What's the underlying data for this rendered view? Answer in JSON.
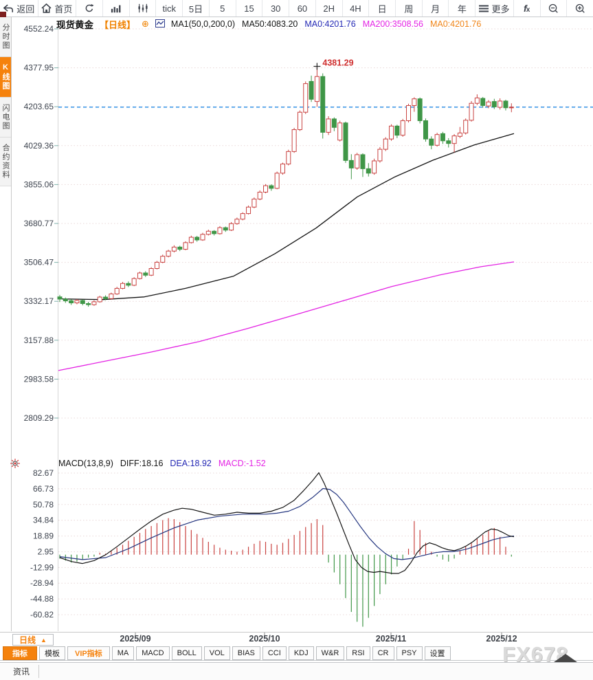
{
  "top_toolbar": {
    "items": [
      {
        "name": "back",
        "icon": "back",
        "label": "返回",
        "wide": true
      },
      {
        "name": "home",
        "icon": "home",
        "label": "首页",
        "wide": true
      },
      {
        "name": "refresh",
        "icon": "refresh",
        "label": ""
      },
      {
        "name": "bar-chart",
        "icon": "bars",
        "label": ""
      },
      {
        "name": "candle-chart",
        "icon": "candles",
        "label": ""
      },
      {
        "name": "tick",
        "label": "tick"
      },
      {
        "name": "5d",
        "label": "5日"
      },
      {
        "name": "5m",
        "label": "5"
      },
      {
        "name": "15m",
        "label": "15"
      },
      {
        "name": "30m",
        "label": "30"
      },
      {
        "name": "60m",
        "label": "60"
      },
      {
        "name": "2h",
        "label": "2H"
      },
      {
        "name": "4h",
        "label": "4H"
      },
      {
        "name": "daily",
        "label": "日"
      },
      {
        "name": "weekly",
        "label": "周"
      },
      {
        "name": "monthly",
        "label": "月"
      },
      {
        "name": "yearly",
        "label": "年"
      },
      {
        "name": "more",
        "icon": "menu",
        "label": "更多",
        "wide": true
      },
      {
        "name": "fx",
        "icon": "fx",
        "label": ""
      },
      {
        "name": "zoom-out",
        "icon": "zoomout",
        "label": ""
      },
      {
        "name": "zoom-in",
        "icon": "zoomin",
        "label": ""
      }
    ]
  },
  "sidebar": {
    "tabs": [
      {
        "name": "time-chart",
        "label": "分时图",
        "active": false
      },
      {
        "name": "kline-chart",
        "label": "K线图",
        "active": true
      },
      {
        "name": "lightning-chart",
        "label": "闪电图",
        "active": false
      },
      {
        "name": "contract-info",
        "label": "合约资料",
        "active": false
      }
    ]
  },
  "legend": {
    "symbol": "现货黄金",
    "period": "【日线】",
    "plus_icon": "⊕",
    "items": [
      {
        "name": "ma-group",
        "text": "MA1(50,0,200,0)",
        "color": "#141414"
      },
      {
        "name": "ma50",
        "text": "MA50:4083.20",
        "color": "#141414"
      },
      {
        "name": "price-line",
        "text": "MA0:4201.76",
        "color": "#2428b4"
      },
      {
        "name": "ma200",
        "text": "MA200:3508.56",
        "color": "#e424e4"
      },
      {
        "name": "last-price",
        "text": "MA0:4201.76",
        "color": "#f08418"
      }
    ]
  },
  "macd_header": {
    "items": [
      {
        "name": "macd-params",
        "text": "MACD(13,8,9)",
        "color": "#141414"
      },
      {
        "name": "diff",
        "text": "DIFF:18.16",
        "color": "#141414"
      },
      {
        "name": "dea",
        "text": "DEA:18.92",
        "color": "#2428b4"
      },
      {
        "name": "macd-hist",
        "text": "MACD:-1.52",
        "color": "#e424e4"
      }
    ]
  },
  "period_button": {
    "label": "日线",
    "arrow": "▲"
  },
  "bottom_toolbar": {
    "items": [
      {
        "name": "indicators",
        "label": "指标",
        "style": "active"
      },
      {
        "name": "templates",
        "label": "模板",
        "style": ""
      },
      {
        "name": "vip-indicators",
        "label": "VIP指标",
        "style": "vip"
      },
      {
        "name": "ma",
        "label": "MA",
        "style": ""
      },
      {
        "name": "macd",
        "label": "MACD",
        "style": ""
      },
      {
        "name": "boll",
        "label": "BOLL",
        "style": ""
      },
      {
        "name": "vol",
        "label": "VOL",
        "style": ""
      },
      {
        "name": "bias",
        "label": "BIAS",
        "style": ""
      },
      {
        "name": "cci",
        "label": "CCI",
        "style": ""
      },
      {
        "name": "kdj",
        "label": "KDJ",
        "style": ""
      },
      {
        "name": "wr",
        "label": "W&R",
        "style": ""
      },
      {
        "name": "rsi",
        "label": "RSI",
        "style": ""
      },
      {
        "name": "cr",
        "label": "CR",
        "style": ""
      },
      {
        "name": "psy",
        "label": "PSY",
        "style": ""
      },
      {
        "name": "settings",
        "label": "设置",
        "style": ""
      }
    ]
  },
  "watermark": "FX678",
  "news_tab": "资讯",
  "annotation": {
    "text": "4381.29"
  },
  "chart_data": {
    "type": "candlestick",
    "title": "现货黄金 日线",
    "price_axis_labels": [
      4552.24,
      4377.95,
      4203.65,
      4029.36,
      3855.06,
      3680.77,
      3506.47,
      3332.17,
      3157.88,
      2983.58,
      2809.29
    ],
    "macd_axis_labels": [
      82.67,
      66.73,
      50.78,
      34.84,
      18.89,
      2.95,
      -12.99,
      -28.94,
      -44.88,
      -60.82
    ],
    "x_labels": [
      "2025/09",
      "2025/10",
      "2025/11",
      "2025/12"
    ],
    "last_price": 4201.76,
    "high_annotation": 4381.29,
    "ma50_last": 4083.2,
    "ma200_last": 3508.56,
    "macd_params": "13,8,9",
    "diff_last": 18.16,
    "dea_last": 18.92,
    "hist_last": -1.52,
    "candles": [
      [
        3352,
        3361,
        3329,
        3342
      ],
      [
        3342,
        3349,
        3325,
        3334
      ],
      [
        3335,
        3341,
        3316,
        3325
      ],
      [
        3325,
        3342,
        3319,
        3336
      ],
      [
        3336,
        3340,
        3314,
        3322
      ],
      [
        3322,
        3330,
        3308,
        3317
      ],
      [
        3317,
        3337,
        3312,
        3330
      ],
      [
        3330,
        3357,
        3326,
        3351
      ],
      [
        3351,
        3359,
        3337,
        3344
      ],
      [
        3344,
        3371,
        3340,
        3365
      ],
      [
        3365,
        3397,
        3361,
        3390
      ],
      [
        3390,
        3419,
        3386,
        3412
      ],
      [
        3412,
        3421,
        3396,
        3404
      ],
      [
        3404,
        3440,
        3400,
        3434
      ],
      [
        3434,
        3465,
        3430,
        3459
      ],
      [
        3459,
        3467,
        3441,
        3449
      ],
      [
        3449,
        3485,
        3445,
        3479
      ],
      [
        3479,
        3513,
        3475,
        3507
      ],
      [
        3507,
        3541,
        3503,
        3534
      ],
      [
        3534,
        3563,
        3529,
        3557
      ],
      [
        3557,
        3583,
        3551,
        3575
      ],
      [
        3575,
        3581,
        3557,
        3565
      ],
      [
        3565,
        3601,
        3561,
        3595
      ],
      [
        3595,
        3626,
        3591,
        3619
      ],
      [
        3619,
        3625,
        3599,
        3607
      ],
      [
        3607,
        3639,
        3603,
        3632
      ],
      [
        3632,
        3653,
        3627,
        3646
      ],
      [
        3646,
        3651,
        3627,
        3635
      ],
      [
        3635,
        3669,
        3631,
        3662
      ],
      [
        3662,
        3667,
        3643,
        3651
      ],
      [
        3651,
        3687,
        3647,
        3680
      ],
      [
        3680,
        3707,
        3675,
        3700
      ],
      [
        3700,
        3731,
        3695,
        3725
      ],
      [
        3725,
        3761,
        3721,
        3754
      ],
      [
        3754,
        3797,
        3749,
        3790
      ],
      [
        3790,
        3829,
        3785,
        3821
      ],
      [
        3821,
        3857,
        3816,
        3850
      ],
      [
        3850,
        3856,
        3827,
        3838
      ],
      [
        3838,
        3913,
        3834,
        3906
      ],
      [
        3906,
        3953,
        3899,
        3947
      ],
      [
        3947,
        4011,
        3941,
        4003
      ],
      [
        4003,
        4109,
        3997,
        4101
      ],
      [
        4101,
        4187,
        4095,
        4179
      ],
      [
        4179,
        4317,
        4171,
        4307
      ],
      [
        4317,
        4343,
        4225,
        4237
      ],
      [
        4227,
        4381.29,
        4203,
        4339
      ],
      [
        4339,
        4353,
        4061,
        4089
      ],
      [
        4089,
        4161,
        4077,
        4149
      ],
      [
        4149,
        4156,
        4094,
        4111
      ],
      [
        4054,
        4141,
        4048,
        4131
      ],
      [
        4131,
        4137,
        3952,
        3963
      ],
      [
        3963,
        3991,
        3879,
        3929
      ],
      [
        3929,
        3997,
        3921,
        3989
      ],
      [
        3989,
        3995,
        3889,
        3926
      ],
      [
        3926,
        3951,
        3891,
        3906
      ],
      [
        3906,
        3971,
        3899,
        3961
      ],
      [
        3961,
        4023,
        3953,
        4013
      ],
      [
        4013,
        4067,
        4005,
        4059
      ],
      [
        4059,
        4125,
        4051,
        4117
      ],
      [
        4117,
        4123,
        4063,
        4076
      ],
      [
        4076,
        4149,
        4069,
        4141
      ],
      [
        4141,
        4217,
        4133,
        4209
      ],
      [
        4209,
        4246,
        4181,
        4239
      ],
      [
        4239,
        4245,
        4129,
        4141
      ],
      [
        4141,
        4151,
        4047,
        4059
      ],
      [
        4059,
        4071,
        4013,
        4031
      ],
      [
        4031,
        4087,
        4025,
        4079
      ],
      [
        4083,
        4091,
        4037,
        4051
      ],
      [
        4051,
        4063,
        4021,
        4039
      ],
      [
        4039,
        4081,
        3999,
        4073
      ],
      [
        4071,
        4113,
        4063,
        4086
      ],
      [
        4086,
        4151,
        4079,
        4143
      ],
      [
        4143,
        4229,
        4137,
        4219
      ],
      [
        4219,
        4259,
        4211,
        4243
      ],
      [
        4241,
        4247,
        4199,
        4209
      ],
      [
        4207,
        4233,
        4197,
        4225
      ],
      [
        4227,
        4239,
        4193,
        4203
      ],
      [
        4201,
        4241,
        4191,
        4229
      ],
      [
        4229,
        4235,
        4187,
        4199
      ],
      [
        4199,
        4219,
        4179,
        4201.76
      ]
    ],
    "macd_hist": [
      -4,
      -6,
      -8,
      -7,
      -5,
      -3,
      -2,
      2,
      1,
      4,
      7,
      10,
      14,
      18,
      22,
      26,
      29,
      32,
      35,
      37,
      36,
      33,
      29,
      25,
      21,
      17,
      13,
      10,
      7,
      5,
      4,
      3,
      5,
      8,
      11,
      14,
      13,
      11,
      10,
      12,
      16,
      20,
      24,
      28,
      32,
      36,
      30,
      -8,
      -18,
      -30,
      -44,
      -58,
      -68,
      -73,
      -64,
      -52,
      -40,
      -30,
      -20,
      -12,
      -5,
      6,
      34,
      25,
      12,
      3,
      -2,
      -5,
      -7,
      -4,
      4,
      8,
      12,
      16,
      20,
      24,
      27,
      18,
      8,
      -2
    ],
    "diff_anchors": [
      [
        87,
        -3
      ],
      [
        104,
        -7
      ],
      [
        120,
        -9
      ],
      [
        137,
        -6
      ],
      [
        154,
        0
      ],
      [
        170,
        8
      ],
      [
        187,
        17
      ],
      [
        204,
        26
      ],
      [
        220,
        34
      ],
      [
        237,
        41
      ],
      [
        253,
        45
      ],
      [
        265,
        47
      ],
      [
        278,
        46
      ],
      [
        295,
        43
      ],
      [
        312,
        40
      ],
      [
        328,
        41
      ],
      [
        345,
        43
      ],
      [
        362,
        42
      ],
      [
        378,
        42
      ],
      [
        395,
        44
      ],
      [
        412,
        48
      ],
      [
        428,
        55
      ],
      [
        442,
        65
      ],
      [
        455,
        75
      ],
      [
        464,
        83
      ],
      [
        472,
        72
      ],
      [
        481,
        57
      ],
      [
        490,
        42
      ],
      [
        499,
        26
      ],
      [
        508,
        10
      ],
      [
        517,
        -5
      ],
      [
        526,
        -13
      ],
      [
        535,
        -17
      ],
      [
        544,
        -18
      ],
      [
        553,
        -17
      ],
      [
        562,
        -18
      ],
      [
        571,
        -19
      ],
      [
        580,
        -19
      ],
      [
        589,
        -16
      ],
      [
        598,
        -8
      ],
      [
        607,
        2
      ],
      [
        616,
        9
      ],
      [
        625,
        12
      ],
      [
        634,
        10
      ],
      [
        643,
        7
      ],
      [
        652,
        5
      ],
      [
        661,
        4
      ],
      [
        670,
        6
      ],
      [
        679,
        9
      ],
      [
        688,
        13
      ],
      [
        697,
        18
      ],
      [
        706,
        23
      ],
      [
        715,
        26
      ],
      [
        724,
        25
      ],
      [
        733,
        22
      ],
      [
        741,
        19
      ],
      [
        748,
        18.16
      ]
    ],
    "dea_anchors": [
      [
        87,
        -2
      ],
      [
        120,
        -5
      ],
      [
        154,
        -3
      ],
      [
        187,
        6
      ],
      [
        220,
        17
      ],
      [
        253,
        27
      ],
      [
        287,
        35
      ],
      [
        320,
        39
      ],
      [
        353,
        41
      ],
      [
        387,
        41
      ],
      [
        403,
        42
      ],
      [
        420,
        44
      ],
      [
        437,
        49
      ],
      [
        455,
        58
      ],
      [
        470,
        67
      ],
      [
        480,
        66
      ],
      [
        490,
        61
      ],
      [
        500,
        53
      ],
      [
        512,
        41
      ],
      [
        524,
        29
      ],
      [
        537,
        17
      ],
      [
        549,
        8
      ],
      [
        561,
        1
      ],
      [
        573,
        -4
      ],
      [
        585,
        -5
      ],
      [
        597,
        -4
      ],
      [
        609,
        -2
      ],
      [
        621,
        0
      ],
      [
        633,
        2
      ],
      [
        645,
        3
      ],
      [
        657,
        3
      ],
      [
        669,
        4
      ],
      [
        681,
        6
      ],
      [
        693,
        9
      ],
      [
        705,
        12
      ],
      [
        717,
        15
      ],
      [
        729,
        17
      ],
      [
        739,
        18
      ],
      [
        748,
        18.92
      ]
    ],
    "ma50_anchors": [
      [
        85,
        3343
      ],
      [
        150,
        3340
      ],
      [
        210,
        3352
      ],
      [
        270,
        3390
      ],
      [
        340,
        3445
      ],
      [
        400,
        3545
      ],
      [
        460,
        3660
      ],
      [
        520,
        3800
      ],
      [
        575,
        3890
      ],
      [
        630,
        3964
      ],
      [
        690,
        4032
      ],
      [
        748,
        4083.2
      ]
    ],
    "ma200_anchors": [
      [
        85,
        3022
      ],
      [
        150,
        3062
      ],
      [
        220,
        3105
      ],
      [
        290,
        3152
      ],
      [
        360,
        3210
      ],
      [
        430,
        3272
      ],
      [
        500,
        3335
      ],
      [
        570,
        3398
      ],
      [
        640,
        3450
      ],
      [
        700,
        3487
      ],
      [
        748,
        3508.56
      ]
    ]
  }
}
